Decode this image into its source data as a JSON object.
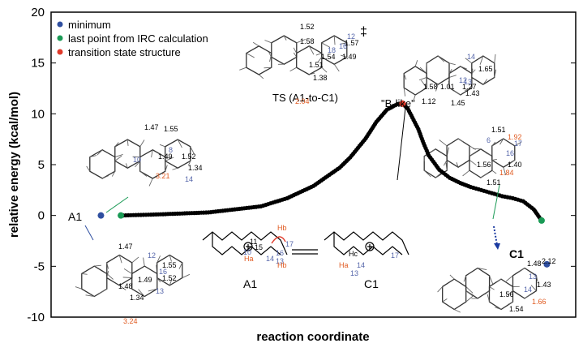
{
  "chart_data": {
    "type": "scatter",
    "xlabel": "reaction coordinate",
    "ylabel": "relative energy (kcal/mol)",
    "ylim": [
      -10,
      20
    ],
    "yticks": [
      -10,
      -5,
      0,
      5,
      10,
      15,
      20
    ],
    "xrange": [
      0,
      100
    ],
    "grid": false,
    "legend_position": "top-left",
    "legend": [
      {
        "label": "minimum",
        "color": "#2f4fa0"
      },
      {
        "label": "last point from IRC calculation",
        "color": "#1a9a55"
      },
      {
        "label": "transition state structure",
        "color": "#e03a2a"
      }
    ],
    "irc_curve": {
      "x": [
        13.3,
        20,
        30,
        40,
        45,
        50,
        55,
        57,
        60,
        62,
        64,
        66,
        67,
        68,
        70,
        71,
        72,
        74,
        76,
        78,
        80,
        82,
        84,
        86,
        88,
        90,
        92,
        93.5
      ],
      "y": [
        0,
        0.1,
        0.3,
        0.9,
        1.7,
        2.9,
        4.7,
        5.7,
        7.6,
        9.2,
        10.4,
        10.95,
        11.0,
        10.5,
        8.5,
        7.1,
        5.9,
        4.5,
        3.7,
        3.2,
        2.8,
        2.5,
        2.2,
        1.9,
        1.7,
        1.4,
        0.6,
        -0.5
      ]
    },
    "points": [
      {
        "label": "A1",
        "kind": "minimum",
        "x": 9.5,
        "y": 0
      },
      {
        "label": "IRC end near A1",
        "kind": "irc_end",
        "x": 13.3,
        "y": 0
      },
      {
        "label": "TS (A1-to-C1)",
        "kind": "transition_state",
        "x": 67,
        "y": 11.0
      },
      {
        "label": "IRC end near C1",
        "kind": "irc_end",
        "x": 93.5,
        "y": -0.5
      },
      {
        "label": "C1",
        "kind": "minimum",
        "x": 94.5,
        "y": -4.8
      }
    ],
    "annotations": {
      "ts_label": "TS (A1-to-C1)",
      "dagger": "‡",
      "b_like": "\"B-like\"",
      "a1_label": "A1",
      "c1_label": "C1",
      "scheme_a1": "A1",
      "scheme_c1": "C1"
    },
    "bond_labels": {
      "struct_ts": [
        "1.52",
        "1.58",
        "1.57",
        "1.54",
        "1.49",
        "1.51",
        "1.38",
        "2.04",
        "12",
        "16",
        "18"
      ],
      "struct_blike": [
        "1.65",
        "1.58",
        "1.01",
        "1.27",
        "1.43",
        "1.12",
        "1.45",
        "14",
        "12",
        "13"
      ],
      "struct_a1_upper": [
        "1.47",
        "1.55",
        "1.49",
        "1.52",
        "1.34",
        "3.21",
        "8",
        "14",
        "10"
      ],
      "struct_a1_lower": [
        "1.47",
        "1.55",
        "1.52",
        "1.49",
        "1.48",
        "1.34",
        "3.24",
        "12",
        "16",
        "13"
      ],
      "struct_c1_upper": [
        "1.51",
        "1.92",
        "1.40",
        "1.56",
        "1.51",
        "1.84",
        "6",
        "16",
        "17"
      ],
      "struct_c1_lower": [
        "1.48",
        "2.12",
        "1.43",
        "1.56",
        "1.54",
        "1.66",
        "13",
        "14"
      ],
      "scheme": [
        "11",
        "15",
        "10",
        "17",
        "14",
        "13",
        "16",
        "Hb",
        "Ha",
        "Hb",
        "Hc",
        "Ha",
        "14",
        "13",
        "17"
      ]
    }
  }
}
